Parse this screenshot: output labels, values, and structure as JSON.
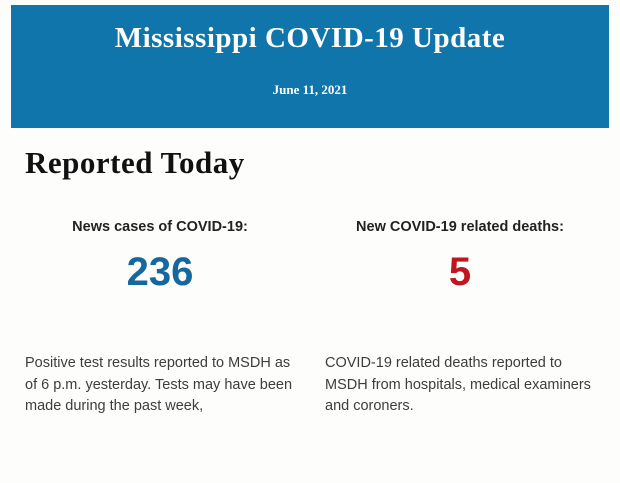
{
  "header": {
    "title": "Mississippi COVID-19 Update",
    "date": "June 11, 2021",
    "background_color": "#0f75ab",
    "text_color": "#ffffff"
  },
  "main": {
    "section_title": "Reported Today",
    "stats": [
      {
        "label": "News cases of COVID-19:",
        "value": "236",
        "value_color": "#17679f",
        "description": "Positive test results reported to MSDH as of 6 p.m. yesterday. Tests may have been made during the past week,"
      },
      {
        "label": "New COVID-19 related deaths:",
        "value": "5",
        "value_color": "#bf1722",
        "description": "COVID-19 related deaths reported to MSDH from hospitals, medical examiners and coroners."
      }
    ]
  }
}
